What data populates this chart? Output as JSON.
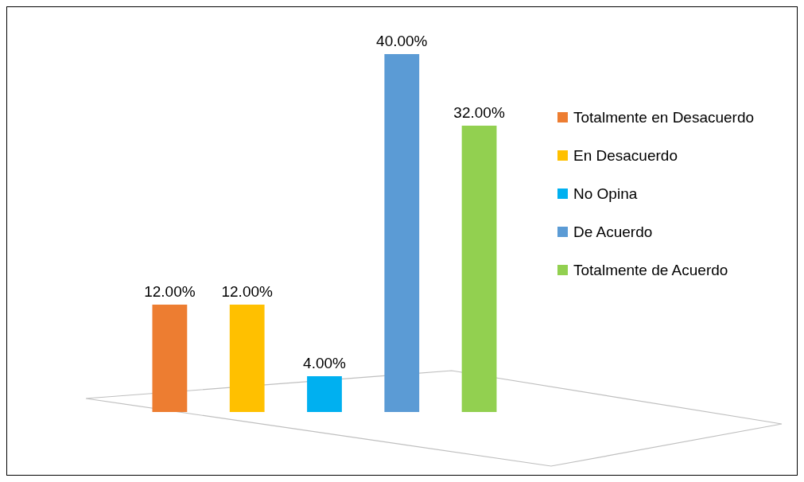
{
  "chart_data": {
    "type": "bar",
    "stacked": true,
    "categories": [
      null,
      null,
      null,
      null,
      null
    ],
    "series": [
      {
        "name": "Totalmente en Desacuerdo",
        "color": "#ed7d31",
        "values": [
          12,
          0,
          0,
          0,
          0
        ],
        "value_labels": [
          "12.00%",
          null,
          null,
          null,
          null
        ]
      },
      {
        "name": "En Desacuerdo",
        "color": "#ffc000",
        "values": [
          0,
          12,
          0,
          0,
          0
        ],
        "value_labels": [
          null,
          "12.00%",
          null,
          null,
          null
        ]
      },
      {
        "name": "No Opina",
        "color": "#00b0f0",
        "values": [
          0,
          0,
          4,
          0,
          0
        ],
        "value_labels": [
          null,
          null,
          "4.00%",
          null,
          null
        ]
      },
      {
        "name": "De Acuerdo",
        "color": "#5b9bd5",
        "values": [
          0,
          0,
          0,
          40,
          0
        ],
        "value_labels": [
          null,
          null,
          null,
          "40.00%",
          null
        ]
      },
      {
        "name": "Totalmente de Acuerdo",
        "color": "#92d050",
        "values": [
          0,
          0,
          0,
          0,
          32
        ],
        "value_labels": [
          null,
          null,
          null,
          null,
          "32.00%"
        ]
      }
    ],
    "legend": "right",
    "grid": false
  }
}
